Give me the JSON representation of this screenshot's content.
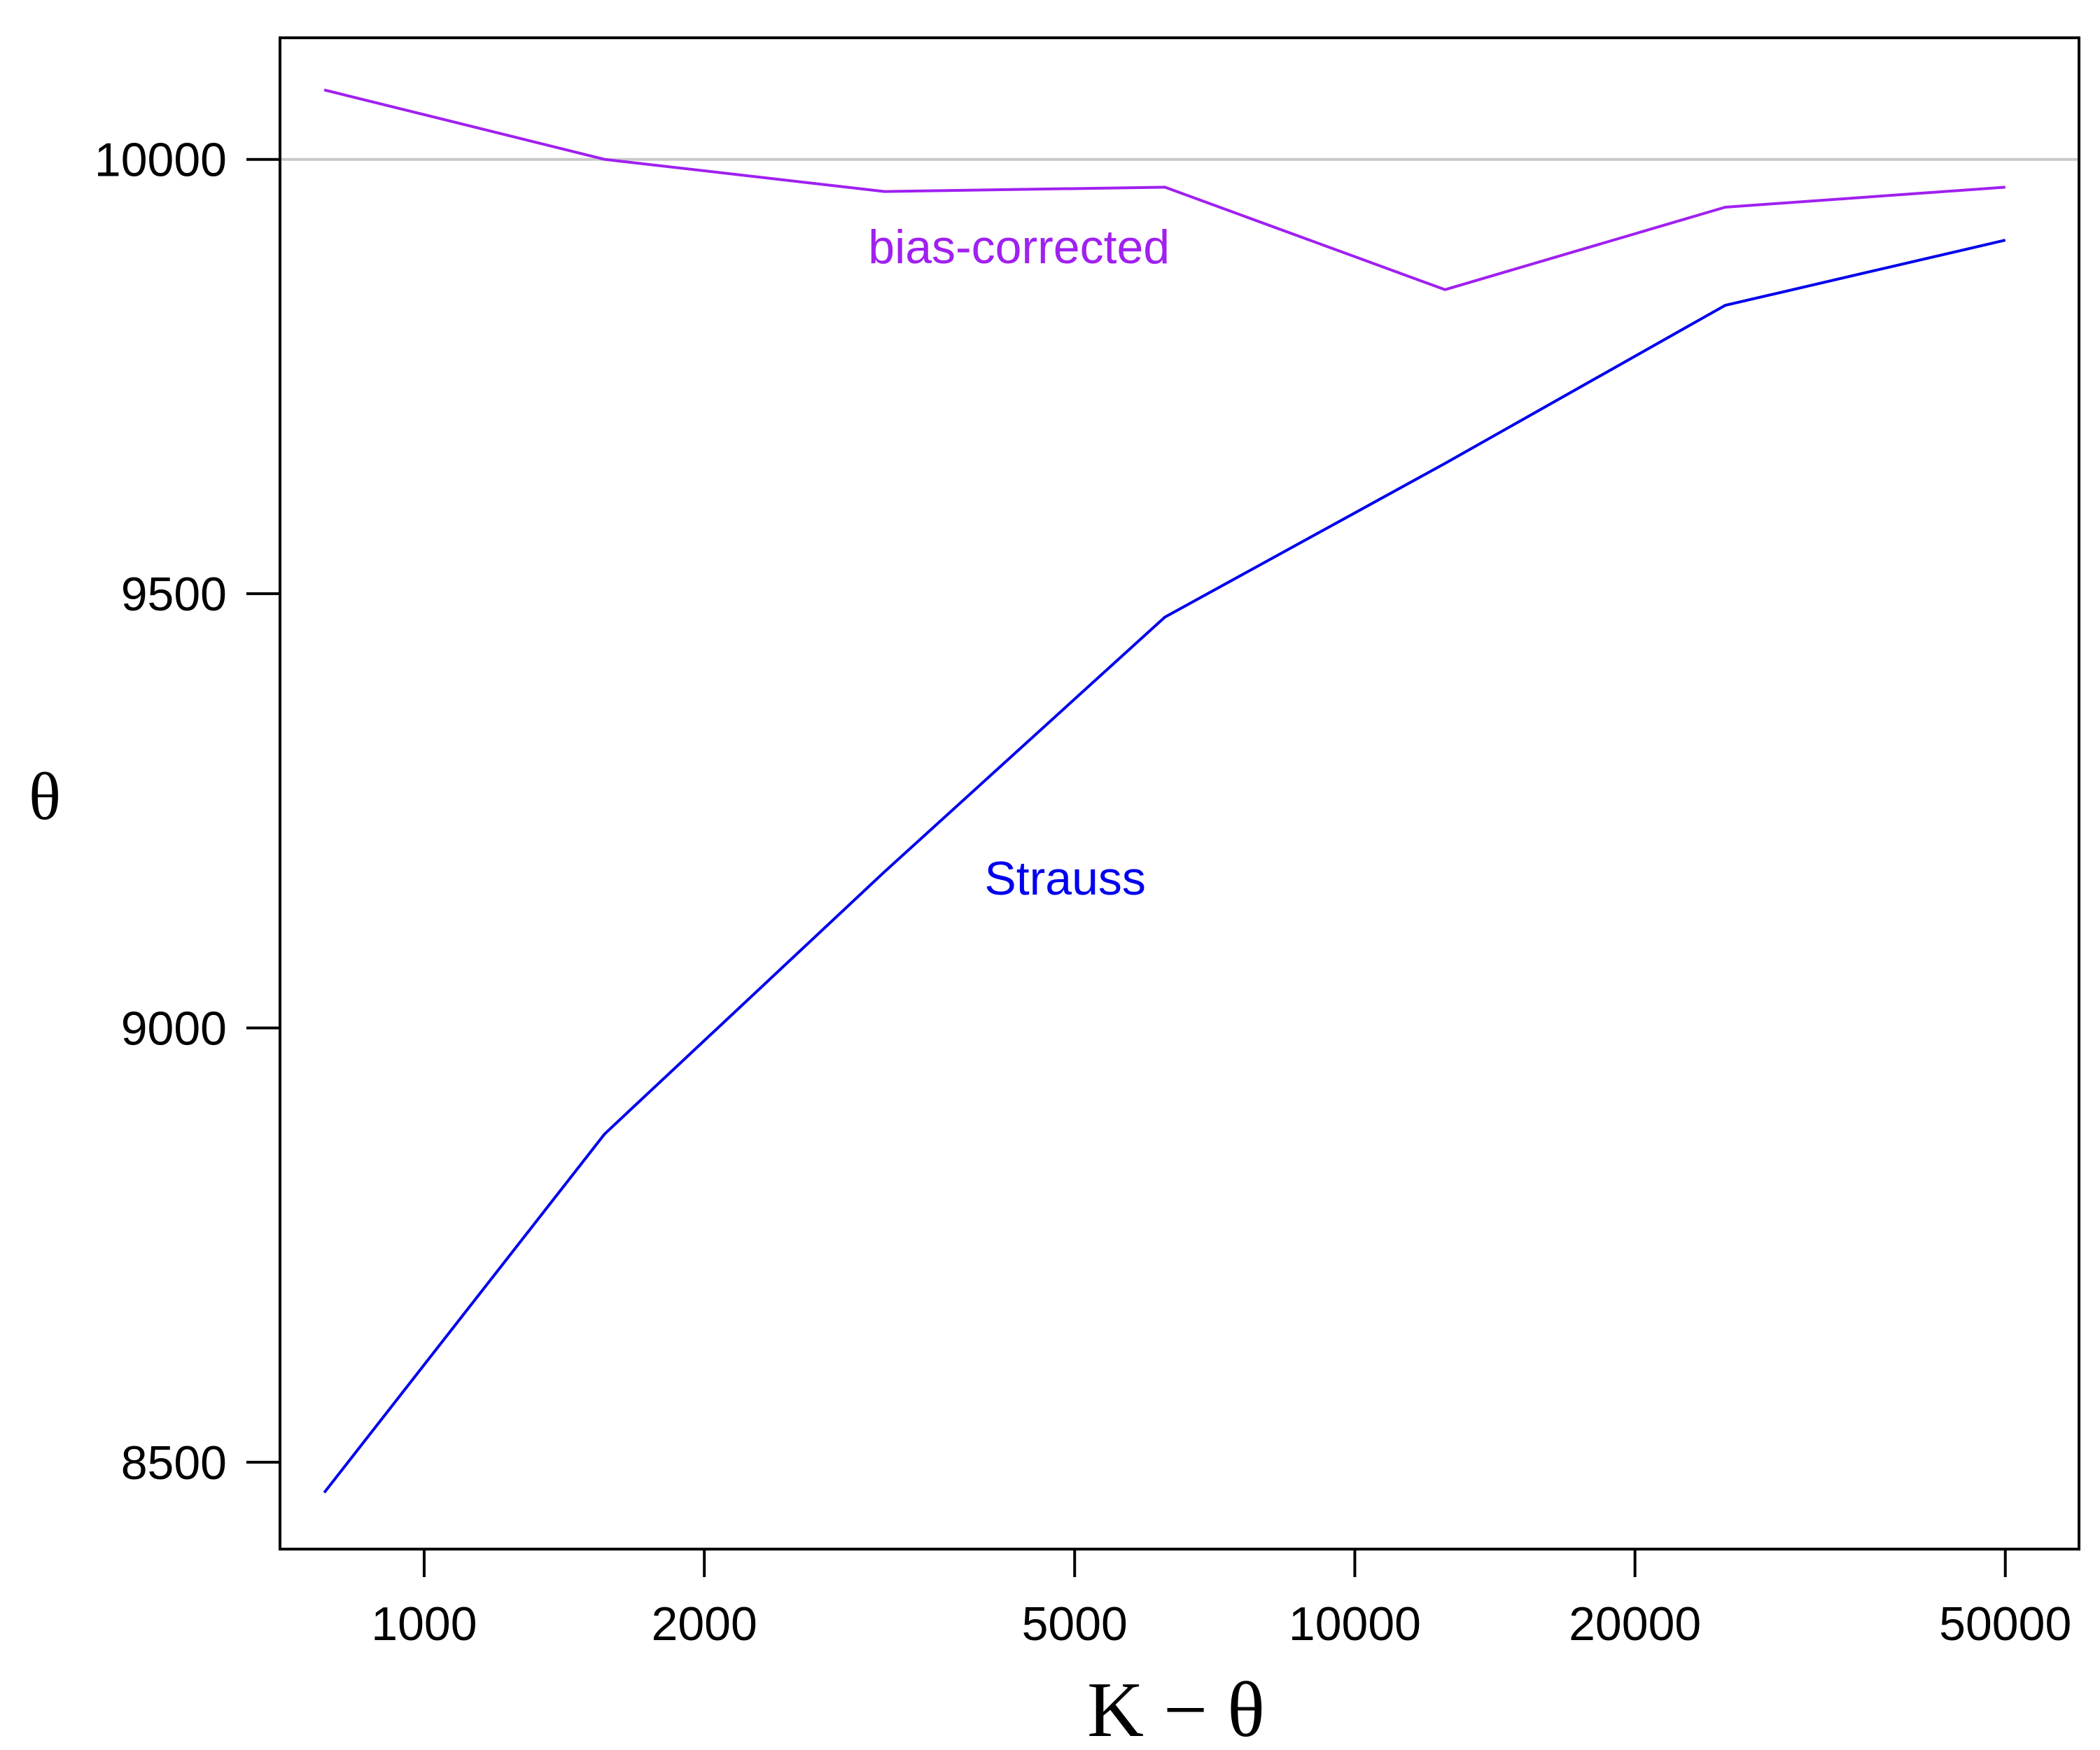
{
  "chart_data": {
    "type": "line",
    "title": "",
    "xlabel": "K − θ",
    "ylabel": "θ",
    "x_scale": "log",
    "xlim": [
      700,
      60000
    ],
    "ylim": [
      8400,
      10140
    ],
    "x_ticks": [
      1000,
      2000,
      5000,
      10000,
      20000,
      50000
    ],
    "x_tick_labels": [
      "1000",
      "2000",
      "5000",
      "10000",
      "20000",
      "50000"
    ],
    "y_ticks": [
      8500,
      9000,
      9500,
      10000
    ],
    "y_tick_labels": [
      "8500",
      "9000",
      "9500",
      "10000"
    ],
    "reference_line": {
      "y": 10000,
      "color": "#c8c8c8"
    },
    "grid": false,
    "x": [
      781,
      1563,
      3125,
      6250,
      12500,
      25000,
      50000
    ],
    "series": [
      {
        "name": "bias-corrected",
        "color": "#a020f0",
        "values": [
          10080,
          10000,
          9963,
          9968,
          9850,
          9945,
          9968
        ],
        "label_anchor": {
          "x": 3000,
          "y": 9900
        }
      },
      {
        "name": "Strauss",
        "color": "#0000ee",
        "values": [
          8465,
          8878,
          9180,
          9473,
          9650,
          9832,
          9907
        ],
        "label_anchor": {
          "x": 4000,
          "y": 9173
        }
      }
    ]
  }
}
